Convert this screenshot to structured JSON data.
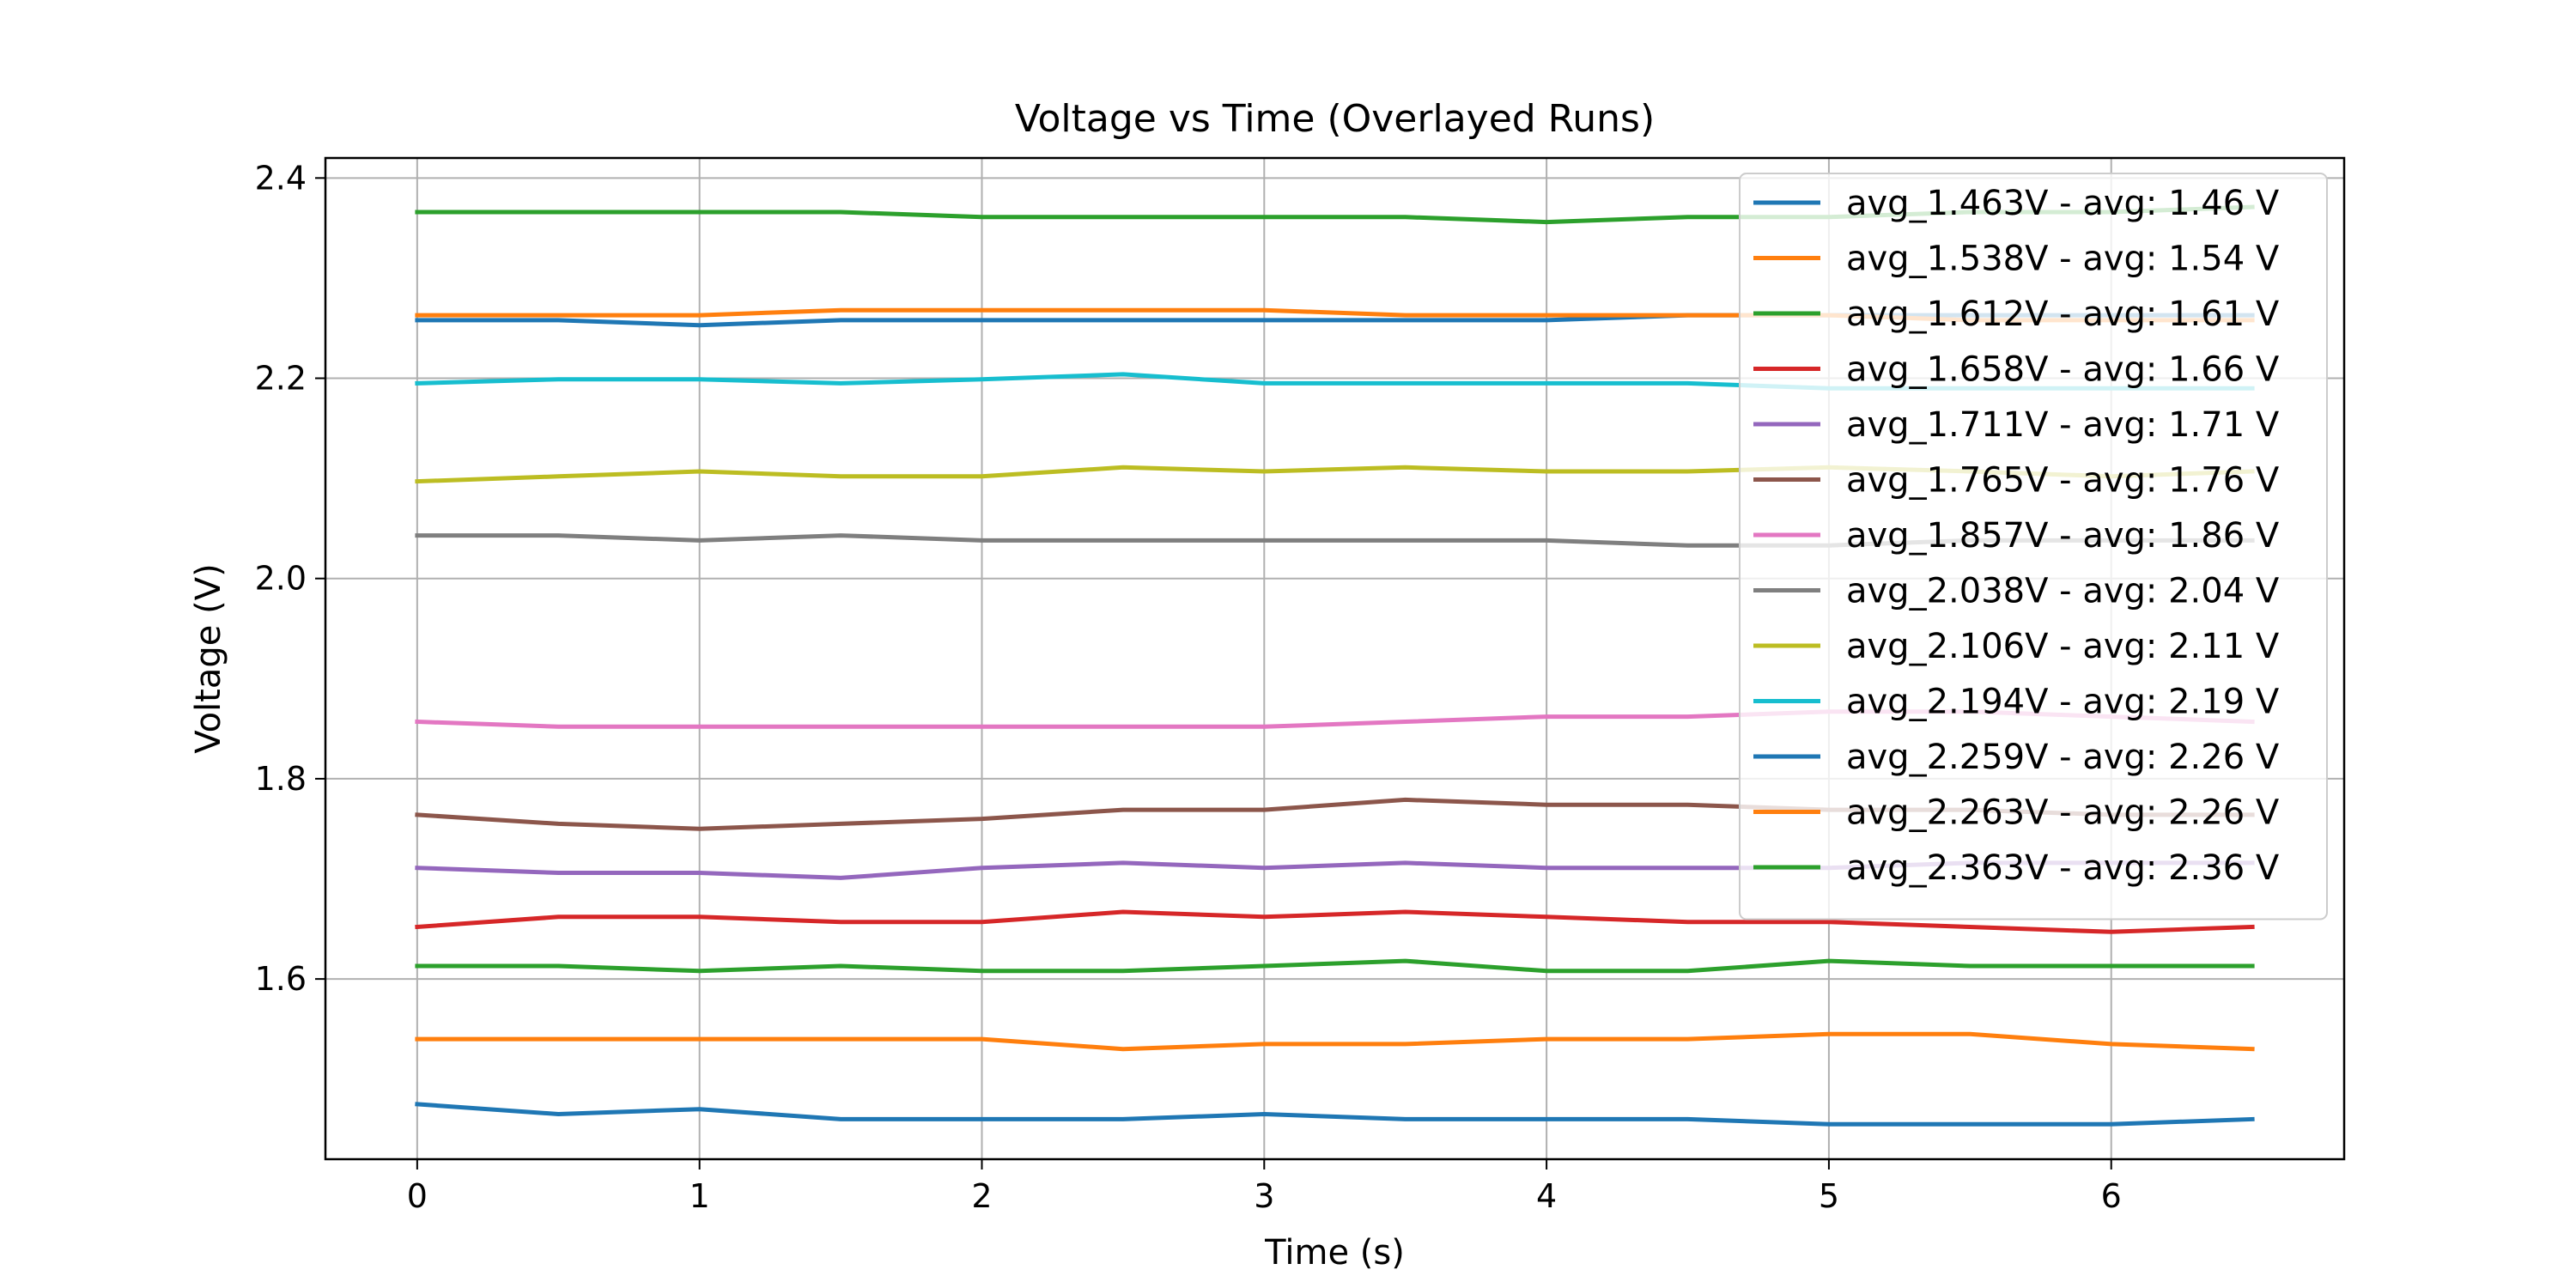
{
  "chart_data": {
    "type": "line",
    "title": "Voltage vs Time (Overlayed Runs)",
    "xlabel": "Time (s)",
    "ylabel": "Voltage (V)",
    "xlim": [
      -0.325,
      6.825
    ],
    "ylim": [
      1.42,
      2.42
    ],
    "xticks": [
      0,
      1,
      2,
      3,
      4,
      5,
      6
    ],
    "xtick_labels": [
      "0",
      "1",
      "2",
      "3",
      "4",
      "5",
      "6"
    ],
    "yticks": [
      1.6,
      1.8,
      2.0,
      2.2,
      2.4
    ],
    "ytick_labels": [
      "1.6",
      "1.8",
      "2.0",
      "2.2",
      "2.4"
    ],
    "grid": true,
    "legend_position": "upper right",
    "x": [
      0,
      0.5,
      1,
      1.5,
      2,
      2.5,
      3,
      3.5,
      4,
      4.5,
      5,
      5.5,
      6,
      6.5
    ],
    "series": [
      {
        "name": "avg_1.463V - avg: 1.46 V",
        "color": "#1f77b4",
        "values": [
          1.475,
          1.465,
          1.47,
          1.46,
          1.46,
          1.46,
          1.465,
          1.46,
          1.46,
          1.46,
          1.455,
          1.455,
          1.455,
          1.46
        ]
      },
      {
        "name": "avg_1.538V - avg: 1.54 V",
        "color": "#ff7f0e",
        "values": [
          1.54,
          1.54,
          1.54,
          1.54,
          1.54,
          1.53,
          1.535,
          1.535,
          1.54,
          1.54,
          1.545,
          1.545,
          1.535,
          1.53
        ]
      },
      {
        "name": "avg_1.612V - avg: 1.61 V",
        "color": "#2ca02c",
        "values": [
          1.613,
          1.613,
          1.608,
          1.613,
          1.608,
          1.608,
          1.613,
          1.618,
          1.608,
          1.608,
          1.618,
          1.613,
          1.613,
          1.613
        ]
      },
      {
        "name": "avg_1.658V - avg: 1.66 V",
        "color": "#d62728",
        "values": [
          1.652,
          1.662,
          1.662,
          1.657,
          1.657,
          1.667,
          1.662,
          1.667,
          1.662,
          1.657,
          1.657,
          1.652,
          1.647,
          1.652
        ]
      },
      {
        "name": "avg_1.711V - avg: 1.71 V",
        "color": "#9467bd",
        "values": [
          1.711,
          1.706,
          1.706,
          1.701,
          1.711,
          1.716,
          1.711,
          1.716,
          1.711,
          1.711,
          1.711,
          1.716,
          1.716,
          1.716
        ]
      },
      {
        "name": "avg_1.765V - avg: 1.76 V",
        "color": "#8c564b",
        "values": [
          1.764,
          1.755,
          1.75,
          1.755,
          1.76,
          1.769,
          1.769,
          1.779,
          1.774,
          1.774,
          1.769,
          1.769,
          1.764,
          1.764
        ]
      },
      {
        "name": "avg_1.857V - avg: 1.86 V",
        "color": "#e377c2",
        "values": [
          1.857,
          1.852,
          1.852,
          1.852,
          1.852,
          1.852,
          1.852,
          1.857,
          1.862,
          1.862,
          1.867,
          1.867,
          1.862,
          1.857
        ]
      },
      {
        "name": "avg_2.038V - avg: 2.04 V",
        "color": "#7f7f7f",
        "values": [
          2.043,
          2.043,
          2.038,
          2.043,
          2.038,
          2.038,
          2.038,
          2.038,
          2.038,
          2.033,
          2.033,
          2.038,
          2.038,
          2.038
        ]
      },
      {
        "name": "avg_2.106V - avg: 2.11 V",
        "color": "#bcbd22",
        "values": [
          2.097,
          2.102,
          2.107,
          2.102,
          2.102,
          2.111,
          2.107,
          2.111,
          2.107,
          2.107,
          2.111,
          2.107,
          2.102,
          2.107
        ]
      },
      {
        "name": "avg_2.194V - avg: 2.19 V",
        "color": "#17becf",
        "values": [
          2.195,
          2.199,
          2.199,
          2.195,
          2.199,
          2.204,
          2.195,
          2.195,
          2.195,
          2.195,
          2.19,
          2.19,
          2.19,
          2.19
        ]
      },
      {
        "name": "avg_2.259V - avg: 2.26 V",
        "color": "#1f77b4",
        "values": [
          2.258,
          2.258,
          2.253,
          2.258,
          2.258,
          2.258,
          2.258,
          2.258,
          2.258,
          2.263,
          2.263,
          2.263,
          2.263,
          2.263
        ]
      },
      {
        "name": "avg_2.263V - avg: 2.26 V",
        "color": "#ff7f0e",
        "values": [
          2.263,
          2.263,
          2.263,
          2.268,
          2.268,
          2.268,
          2.268,
          2.263,
          2.263,
          2.263,
          2.263,
          2.258,
          2.258,
          2.258
        ]
      },
      {
        "name": "avg_2.363V - avg: 2.36 V",
        "color": "#2ca02c",
        "values": [
          2.366,
          2.366,
          2.366,
          2.366,
          2.361,
          2.361,
          2.361,
          2.361,
          2.356,
          2.361,
          2.361,
          2.366,
          2.366,
          2.371
        ]
      }
    ]
  }
}
